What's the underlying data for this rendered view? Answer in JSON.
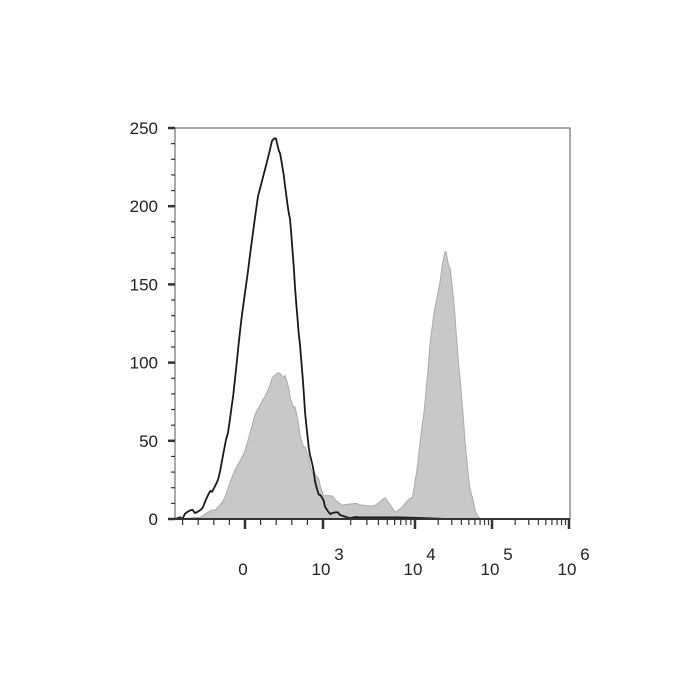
{
  "chart_data": {
    "type": "area",
    "title": "",
    "xlabel": "",
    "ylabel": "",
    "x_scale": "biexponential",
    "ylim": [
      0,
      250
    ],
    "yticks": [
      0,
      50,
      100,
      150,
      200,
      250
    ],
    "xticks": [
      {
        "value": 0,
        "base": "0",
        "exp": ""
      },
      {
        "value": 1000,
        "base": "10",
        "exp": "3"
      },
      {
        "value": 10000,
        "base": "10",
        "exp": "4"
      },
      {
        "value": 100000,
        "base": "10",
        "exp": "5"
      },
      {
        "value": 1000000,
        "base": "10",
        "exp": "6"
      }
    ],
    "grid": false,
    "colors": {
      "control": "#1a1a1a",
      "stained": "#c8c8c8",
      "stained_edge": "#aaaaaa",
      "axis": "#333333"
    },
    "series": [
      {
        "style": "filled-gray",
        "x": [
          -897,
          -577,
          -385,
          -256,
          -128,
          0,
          128,
          256,
          346,
          449,
          513,
          577,
          641,
          705,
          769,
          833,
          897,
          962,
          1051,
          1350,
          1735,
          2524,
          3673,
          4720,
          6067,
          7790,
          9270,
          10940,
          13090,
          15660,
          18740,
          22440,
          25290,
          28510,
          33070,
          38360,
          44510,
          51720,
          60080,
          69800,
          1000000
        ],
        "y": [
          0,
          1,
          5,
          15,
          30,
          45,
          65,
          80,
          88,
          95,
          90,
          80,
          70,
          55,
          45,
          35,
          28,
          22,
          15,
          12,
          10,
          8,
          10,
          12,
          6,
          8,
          15,
          35,
          70,
          110,
          140,
          160,
          172,
          160,
          130,
          90,
          50,
          20,
          5,
          0,
          0
        ]
      },
      {
        "style": "black-line",
        "x": [
          -897,
          -769,
          -641,
          -513,
          -423,
          -321,
          -218,
          -128,
          -38,
          64,
          167,
          256,
          346,
          397,
          449,
          513,
          577,
          641,
          705,
          769,
          833,
          897,
          962,
          1051,
          1253,
          1530,
          2524,
          6871,
          28500,
          1000000
        ],
        "y": [
          0,
          2,
          5,
          10,
          18,
          30,
          55,
          90,
          130,
          170,
          205,
          225,
          240,
          245,
          232,
          215,
          190,
          150,
          110,
          70,
          40,
          25,
          15,
          8,
          4,
          2,
          1,
          1,
          0,
          0
        ]
      }
    ]
  }
}
